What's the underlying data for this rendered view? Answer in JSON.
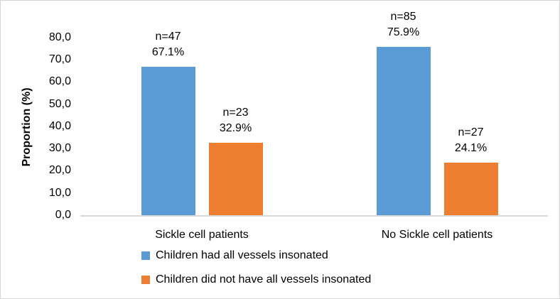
{
  "chart_data": {
    "type": "bar",
    "title": "",
    "ylabel": "Proportion (%)",
    "xlabel": "",
    "ylim": [
      0,
      80
    ],
    "ytick_step": 10,
    "ytick_labels": [
      "0,0",
      "10,0",
      "20,0",
      "30,0",
      "40,0",
      "50,0",
      "60,0",
      "70,0",
      "80,0"
    ],
    "grid": false,
    "legend_position": "bottom-left",
    "categories": [
      "Sickle cell patients",
      "No Sickle cell patients"
    ],
    "series": [
      {
        "name": "Children had all vessels insonated",
        "color": "#5B9BD5",
        "values": [
          67.1,
          75.9
        ],
        "counts": [
          47,
          85
        ],
        "bar_labels": [
          [
            "n=47",
            "67.1%"
          ],
          [
            "n=85",
            "75.9%"
          ]
        ]
      },
      {
        "name": "Children did not have all vessels insonated",
        "color": "#ED7D31",
        "values": [
          32.9,
          24.1
        ],
        "counts": [
          23,
          27
        ],
        "bar_labels": [
          [
            "n=23",
            "32.9%"
          ],
          [
            "n=27",
            "24.1%"
          ]
        ]
      }
    ],
    "colors": {
      "axis_line": "#D9D9D9",
      "text": "#000000",
      "frame_border": "#D6D6D6",
      "background": "#FFFFFF"
    }
  }
}
